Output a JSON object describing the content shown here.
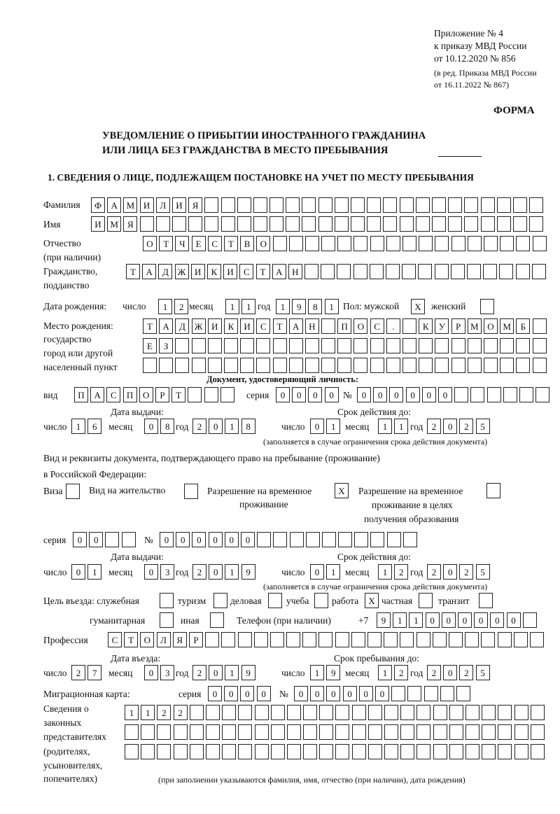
{
  "header": {
    "appendix": "Приложение № 4",
    "order": "к приказу МВД России",
    "order_date": "от 10.12.2020 № 856",
    "edition_1": "(в ред. Приказа МВД России",
    "edition_2": "от 16.11.2022 № 867)",
    "form_label": "ФОРМА",
    "title_1": "УВЕДОМЛЕНИЕ О ПРИБЫТИИ ИНОСТРАННОГО ГРАЖДАНИНА",
    "title_2": "ИЛИ ЛИЦА БЕЗ ГРАЖДАНСТВА В МЕСТО ПРЕБЫВАНИЯ",
    "section_1": "1. СВЕДЕНИЯ О ЛИЦЕ, ПОДЛЕЖАЩЕМ ПОСТАНОВКЕ НА УЧЕТ ПО МЕСТУ ПРЕБЫВАНИЯ"
  },
  "labels": {
    "surname": "Фамилия",
    "name": "Имя",
    "patronymic_1": "Отчество",
    "patronymic_2": "(при наличии)",
    "citizenship_1": "Гражданство,",
    "citizenship_2": "подданство",
    "birth_date": "Дата рождения:",
    "day": "число",
    "month": "месяц",
    "year": "год",
    "sex": "Пол: мужской",
    "female": "женский",
    "birth_place_1": "Место рождения:",
    "birth_place_2": "государство",
    "birth_place_3": "город или другой",
    "birth_place_4": "населенный пункт",
    "id_doc": "Документ, удостоверяющий личность:",
    "kind": "вид",
    "series": "серия",
    "number": "№",
    "issue_date": "Дата выдачи:",
    "valid_until": "Срок действия до:",
    "valid_note": "(заполняется в случае ограничения срока действия документа)",
    "stay_doc_1": "Вид и реквизиты документа, подтверждающего право на пребывание (проживание)",
    "stay_doc_2": "в Российской Федерации:",
    "visa": "Виза",
    "residence": "Вид на жительство",
    "temp_1": "Разрешение на временное",
    "temp_2": "проживание",
    "edu_1": "Разрешение на временное",
    "edu_2": "проживание в целях",
    "edu_3": "получения образования",
    "purpose": "Цель въезда: служебная",
    "tourism": "туризм",
    "business": "деловая",
    "study": "учеба",
    "work": "работа",
    "private": "частная",
    "transit": "транзит",
    "humanitarian": "гуманитарная",
    "other": "иная",
    "phone": "Телефон (при наличии)",
    "phone_prefix": "+7",
    "profession": "Профессия",
    "entry_date": "Дата въезда:",
    "stay_until": "Срок пребывания до:",
    "migration_card": "Миграционная карта:",
    "reps_1": "Сведения о",
    "reps_2": "законных",
    "reps_3": "представителях",
    "reps_4": "(родителях,",
    "reps_5": "усыновителях,",
    "reps_6": "попечителях)",
    "reps_note": "(при заполнении указываются фамилия, имя, отчество (при наличии), дата рождения)"
  },
  "person": {
    "surname": "ФАМИЛИЯ",
    "name": "ИМЯ",
    "patronymic": "ОТЧЕСТВО",
    "citizenship": "ТАДЖИКИСТАН",
    "birth_day": "12",
    "birth_month": "11",
    "birth_year": "1981",
    "male": "X",
    "female": "",
    "birth_place_1": "ТАДЖИКИСТАН ПОС. КУРМОМБ",
    "birth_place_2": "ЕЗ",
    "birth_place_3": ""
  },
  "id_document": {
    "kind": "ПАСПОРТ",
    "series": "0000",
    "number": "000000",
    "issue_day": "16",
    "issue_month": "08",
    "issue_year": "2018",
    "valid_day": "01",
    "valid_month": "11",
    "valid_year": "2025"
  },
  "stay_document": {
    "visa": "",
    "residence": "",
    "temp_residence": "X",
    "temp_residence_edu": "",
    "series": "00",
    "number": "000000",
    "issue_day": "01",
    "issue_month": "03",
    "issue_year": "2019",
    "valid_day": "01",
    "valid_month": "12",
    "valid_year": "2025"
  },
  "purpose": {
    "official": "",
    "tourism": "",
    "business": "",
    "study": "",
    "work": "X",
    "private": "",
    "transit": "",
    "humanitarian": "",
    "other": ""
  },
  "phone": "911000000",
  "profession": "СТОЛЯР",
  "entry": {
    "entry_day": "27",
    "entry_month": "03",
    "entry_year": "2019",
    "stay_day": "19",
    "stay_month": "12",
    "stay_year": "2025"
  },
  "migration_card": {
    "series": "0000",
    "number": "000000"
  },
  "representatives": {
    "line_1": "1122",
    "line_2": "",
    "line_3": ""
  }
}
